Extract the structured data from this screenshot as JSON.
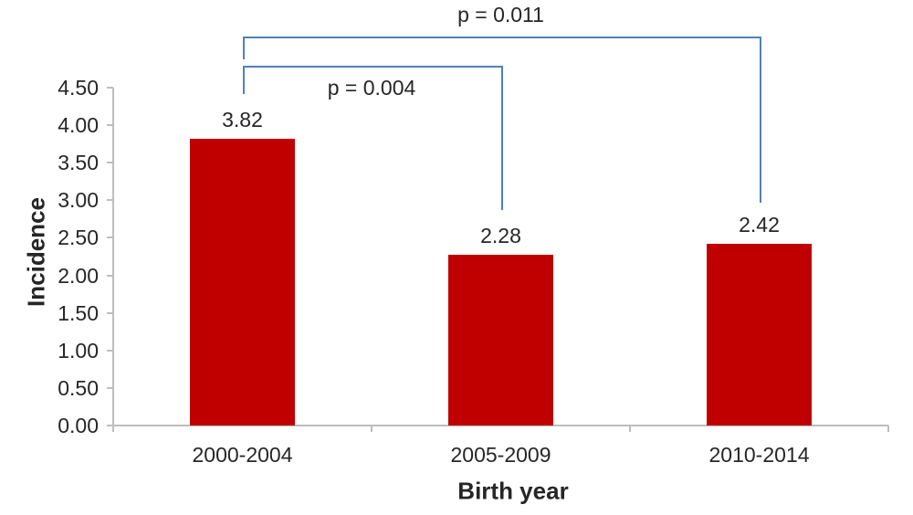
{
  "chart_data": {
    "type": "bar",
    "title": "",
    "xlabel": "Birth year",
    "ylabel": "Incidence",
    "categories": [
      "2000-2004",
      "2005-2009",
      "2010-2014"
    ],
    "values": [
      3.82,
      2.28,
      2.42
    ],
    "value_labels": [
      "3.82",
      "2.28",
      "2.42"
    ],
    "ylim": [
      0,
      4.5
    ],
    "ytick_step": 0.5,
    "ytick_labels": [
      "0.00",
      "0.50",
      "1.00",
      "1.50",
      "2.00",
      "2.50",
      "3.00",
      "3.50",
      "4.00",
      "4.50"
    ],
    "grid": false,
    "legend": "none",
    "colors": {
      "bar": "#C00000",
      "bracket": "#4F81BD",
      "axis": "#BDBDBD",
      "text": "#262626"
    },
    "annotations": [
      {
        "label": "p = 0.004",
        "from_category": "2000-2004",
        "to_category": "2005-2009",
        "from": 0,
        "to": 1,
        "line_y": 4.79,
        "left_drop_to": 4.42,
        "right_drop_to": 2.87,
        "label_position": "below-line"
      },
      {
        "label": "p = 0.011",
        "from_category": "2000-2004",
        "to_category": "2010-2014",
        "from": 0,
        "to": 2,
        "line_y": 5.18,
        "left_drop_to": 4.88,
        "right_drop_to": 2.97,
        "label_position": "above-line"
      }
    ]
  }
}
